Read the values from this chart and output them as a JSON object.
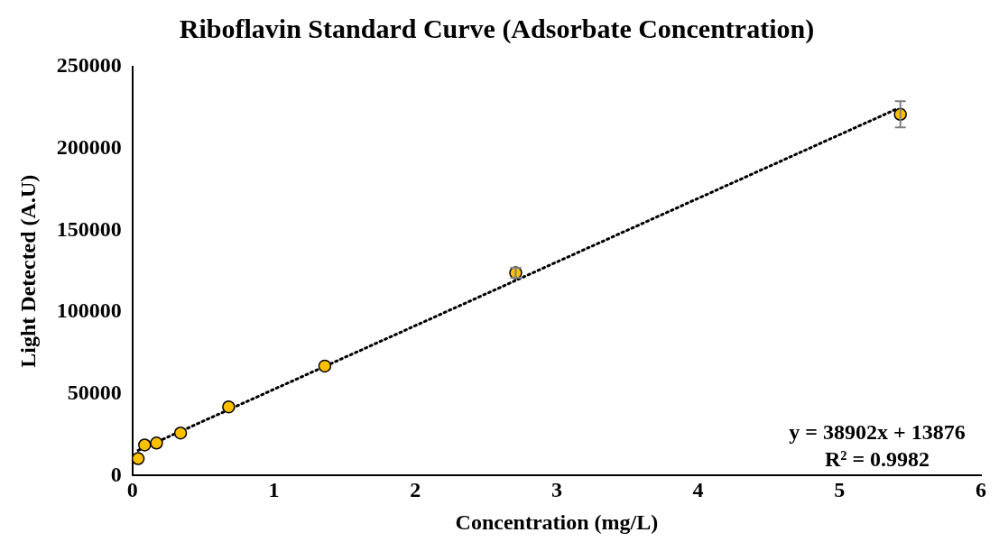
{
  "chart_data": {
    "type": "scatter",
    "title": "Riboflavin Standard Curve (Adsorbate Concentration)",
    "xlabel": "Concentration (mg/L)",
    "ylabel": "Light Detected (A.U)",
    "xlim": [
      0,
      6
    ],
    "xticks": [
      0,
      1,
      2,
      3,
      4,
      5,
      6
    ],
    "ylim": [
      0,
      250000
    ],
    "yticks": [
      0,
      50000,
      100000,
      150000,
      200000,
      250000
    ],
    "grid": false,
    "legend": false,
    "marker": "circle",
    "series": [
      {
        "color": "#ffc000",
        "x": [
          0.04,
          0.086,
          0.17,
          0.34,
          0.68,
          1.36,
          2.71,
          5.43
        ],
        "values": [
          10400,
          18700,
          19900,
          26000,
          42000,
          67000,
          124000,
          220900
        ],
        "errors": [
          null,
          null,
          null,
          null,
          null,
          null,
          3000,
          8000
        ]
      },
      {
        "type": "line",
        "color": "#000000",
        "line_style": "dotted",
        "marker": "none",
        "x": [
          0.04,
          5.4
        ],
        "values": [
          15400,
          224000
        ]
      }
    ],
    "annotations": [
      "y = 38902x + 13876",
      "R² = 0.9982"
    ]
  }
}
